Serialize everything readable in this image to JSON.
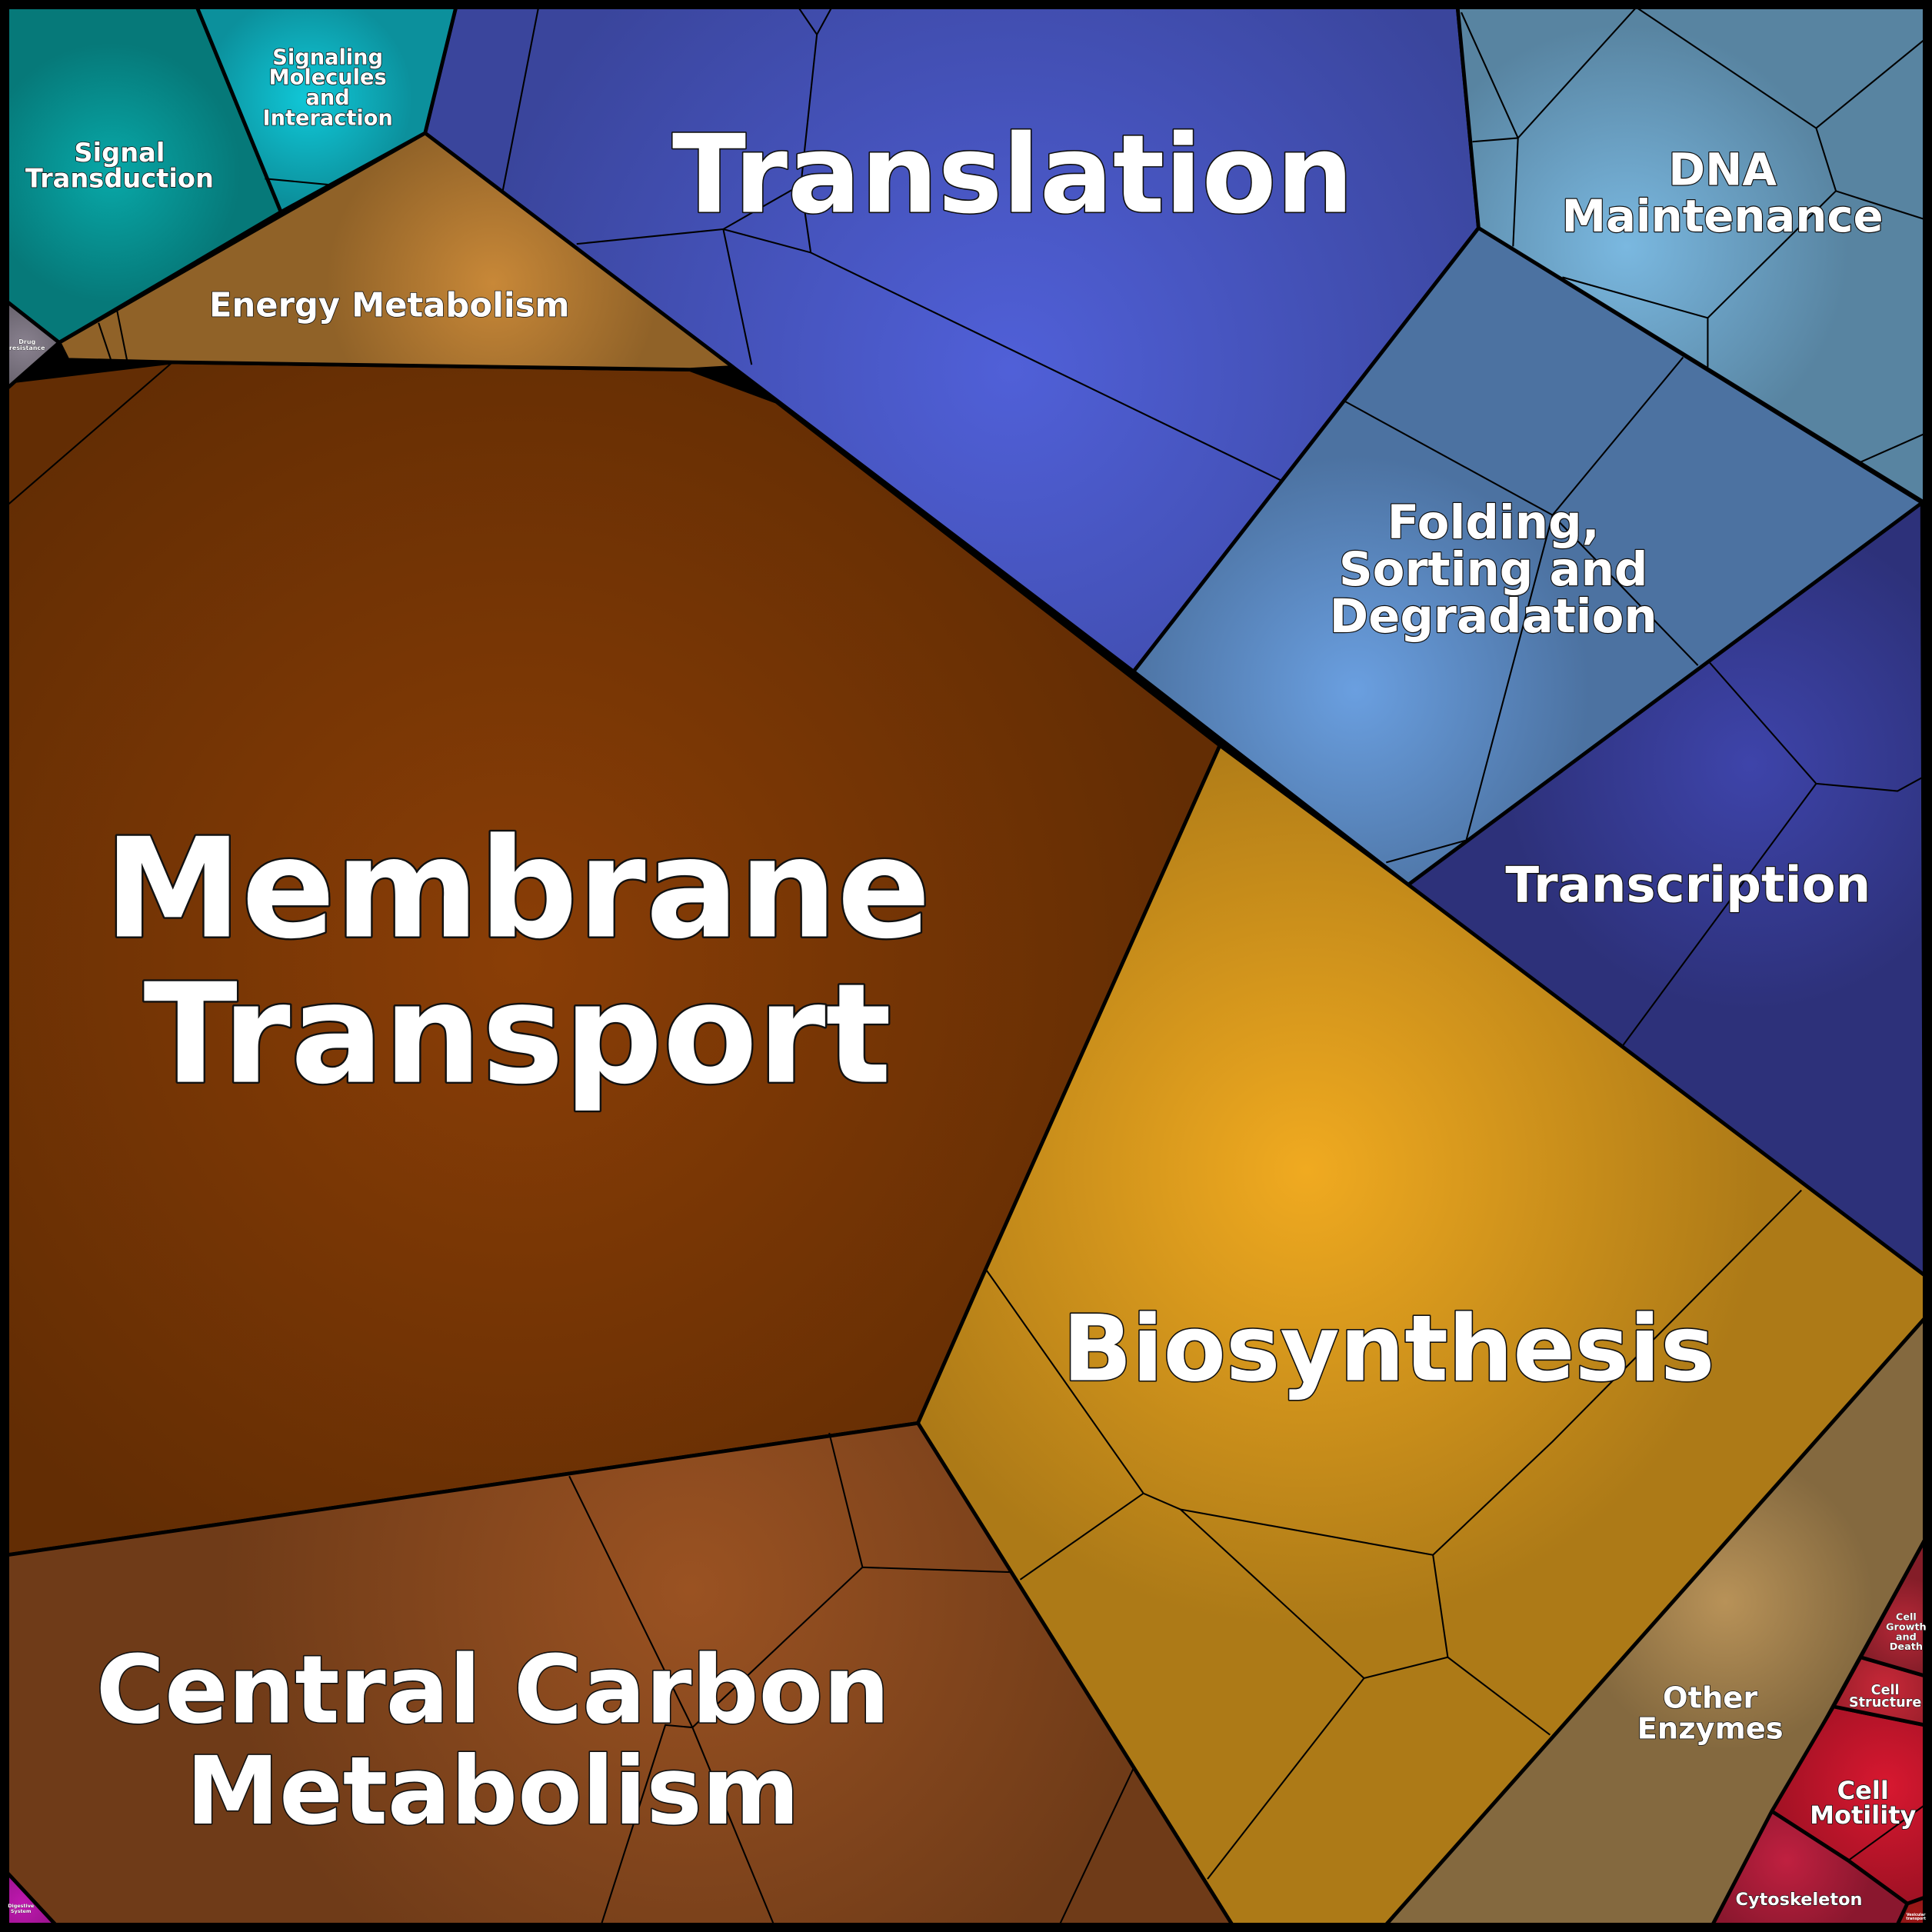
{
  "categories": [
    {
      "id": "membrane",
      "lines": [
        "Membrane",
        "Transport"
      ],
      "color": "#8a3e06"
    },
    {
      "id": "translation",
      "lines": [
        "Translation"
      ],
      "color": "#5060d8"
    },
    {
      "id": "biosynthesis",
      "lines": [
        "Biosynthesis"
      ],
      "color": "#f0aa20"
    },
    {
      "id": "central",
      "lines": [
        "Central Carbon",
        "Metabolism"
      ],
      "color": "#9a5222"
    },
    {
      "id": "folding",
      "lines": [
        "Folding,",
        "Sorting and",
        "Degradation"
      ],
      "color": "#6a9fe0"
    },
    {
      "id": "transcription",
      "lines": [
        "Transcription"
      ],
      "color": "#3e44aa"
    },
    {
      "id": "dna",
      "lines": [
        "DNA",
        "Maintenance"
      ],
      "color": "#7ab8e0"
    },
    {
      "id": "energy",
      "lines": [
        "Energy Metabolism"
      ],
      "color": "#c88838"
    },
    {
      "id": "signal",
      "lines": [
        "Signal",
        "Transduction"
      ],
      "color": "#08a8a8"
    },
    {
      "id": "signaling",
      "lines": [
        "Signaling",
        "Molecules",
        "and",
        "Interaction"
      ],
      "color": "#10c8d8"
    },
    {
      "id": "other",
      "lines": [
        "Other",
        "Enzymes"
      ],
      "color": "#b89258"
    },
    {
      "id": "motility",
      "lines": [
        "Cell",
        "Motility"
      ],
      "color": "#d81830"
    },
    {
      "id": "cytoskeleton",
      "lines": [
        "Cytoskeleton"
      ],
      "color": "#c02040"
    },
    {
      "id": "structure",
      "lines": [
        "Cell",
        "Structure"
      ],
      "color": "#c82838"
    },
    {
      "id": "growth",
      "lines": [
        "Cell",
        "Growth",
        "and",
        "Death"
      ],
      "color": "#b82838"
    },
    {
      "id": "drug",
      "lines": [
        "Drug",
        "resistance"
      ],
      "color": "#8a8290"
    },
    {
      "id": "digestive",
      "lines": [
        "Digestive",
        "System"
      ],
      "color": "#c018b0"
    },
    {
      "id": "vesicular",
      "lines": [
        "Vesicular",
        "transport"
      ],
      "color": "#a01818"
    }
  ]
}
